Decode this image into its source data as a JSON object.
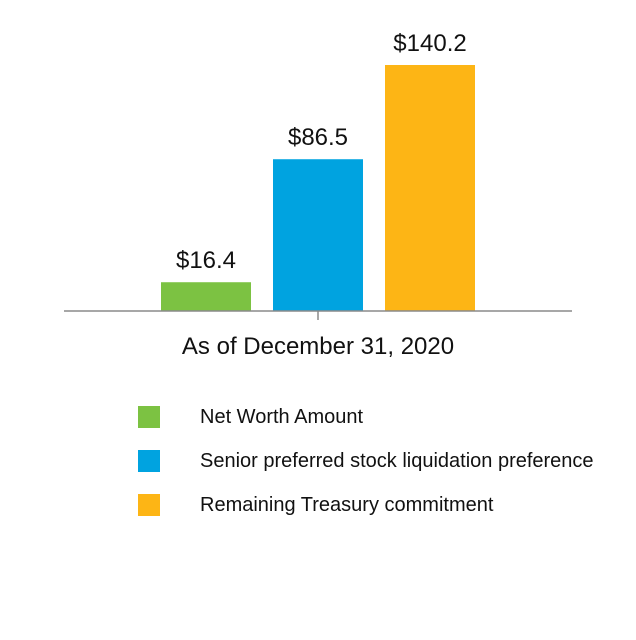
{
  "chart_data": {
    "type": "bar",
    "categories": [
      "As of December 31, 2020"
    ],
    "series": [
      {
        "name": "Net Worth Amount",
        "values": [
          16.4
        ],
        "label": "$16.4",
        "color": "#7CC242"
      },
      {
        "name": "Senior preferred stock liquidation preference",
        "values": [
          86.5
        ],
        "label": "$86.5",
        "color": "#00A3E0"
      },
      {
        "name": "Remaining Treasury commitment",
        "values": [
          140.2
        ],
        "label": "$140.2",
        "color": "#FDB515"
      }
    ],
    "ylim": [
      0,
      160
    ],
    "grid": false,
    "legend_position": "bottom"
  }
}
